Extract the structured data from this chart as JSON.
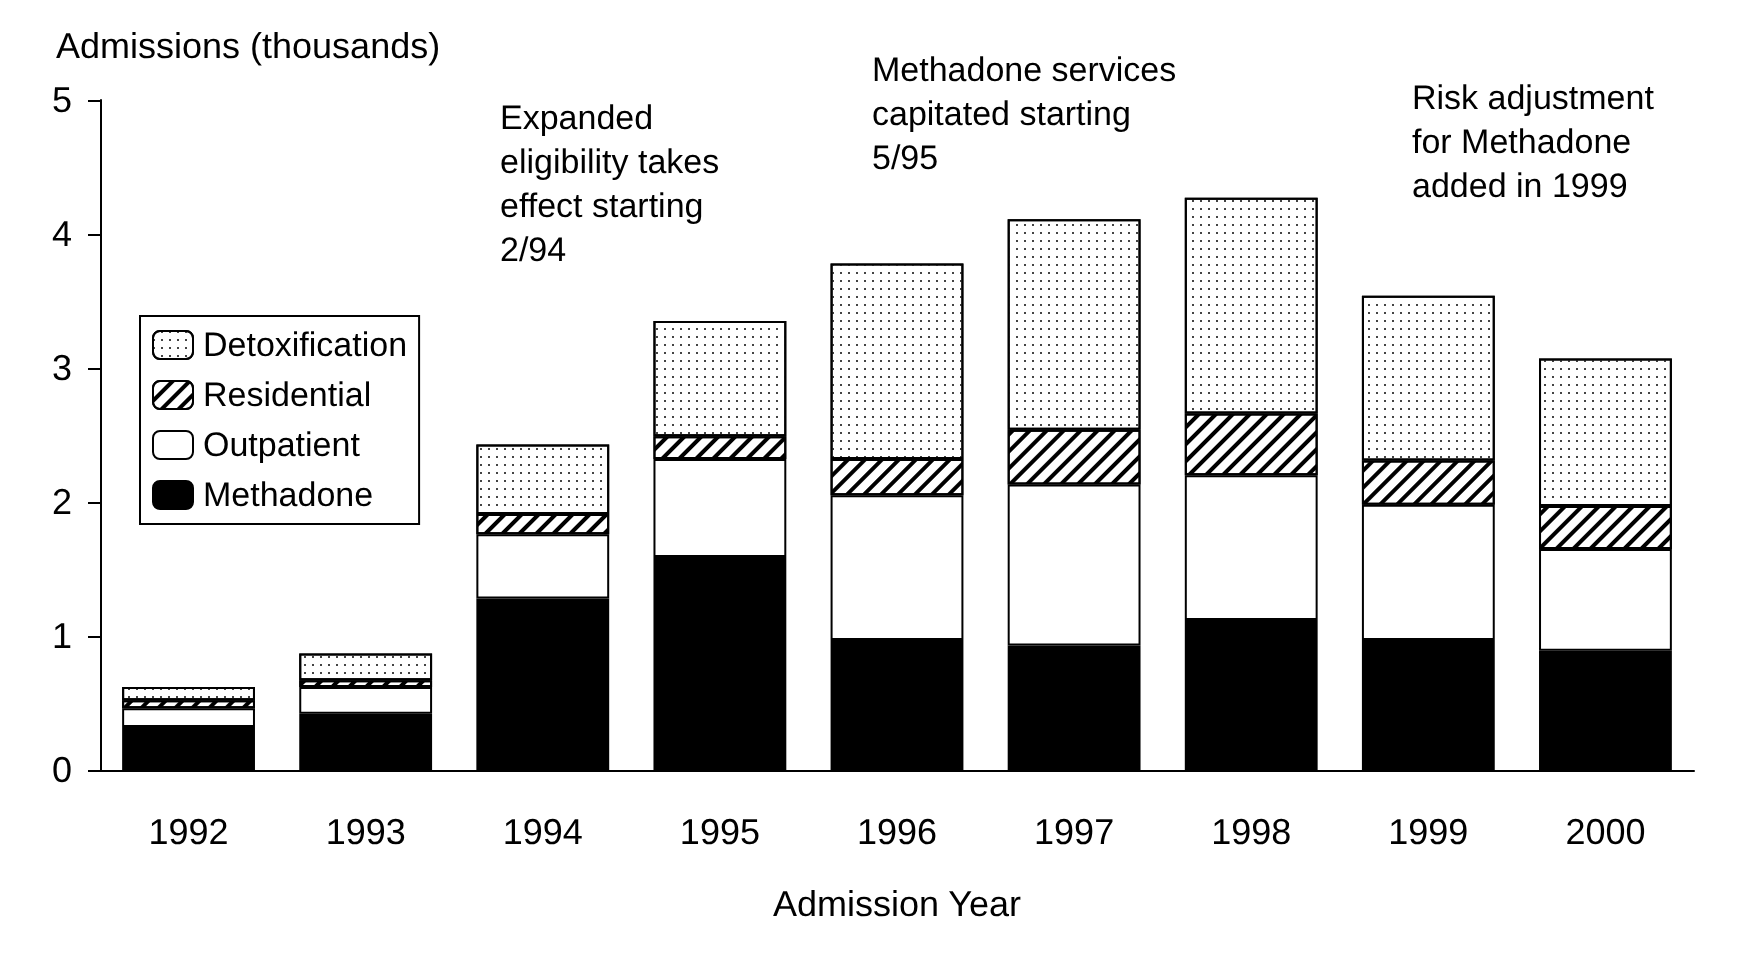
{
  "chart_data": {
    "type": "bar",
    "stacked": true,
    "ylabel": "Admissions (thousands)",
    "xlabel": "Admission Year",
    "categories": [
      "1992",
      "1993",
      "1994",
      "1995",
      "1996",
      "1997",
      "1998",
      "1999",
      "2000"
    ],
    "series": [
      {
        "name": "Methadone",
        "color": "#000000",
        "values": [
          0.32,
          0.42,
          1.28,
          1.59,
          0.97,
          0.93,
          1.12,
          0.97,
          0.89
        ]
      },
      {
        "name": "Outpatient",
        "color": "#ffffff",
        "values": [
          0.14,
          0.2,
          0.48,
          0.73,
          1.08,
          1.2,
          1.08,
          1.01,
          0.76
        ]
      },
      {
        "name": "Residential",
        "color": "#ffffff",
        "values": [
          0.06,
          0.05,
          0.15,
          0.17,
          0.27,
          0.41,
          0.46,
          0.33,
          0.32
        ]
      },
      {
        "name": "Detoxification",
        "color": "#ffffff",
        "values": [
          0.1,
          0.2,
          0.52,
          0.86,
          1.46,
          1.57,
          1.61,
          1.23,
          1.1
        ]
      }
    ],
    "ylim": [
      0,
      5
    ],
    "yticks": [
      0,
      1,
      2,
      3,
      4,
      5
    ],
    "grid": false,
    "legend": "left",
    "annotations": [
      "Expanded\neligibility takes\neffect starting\n2/94",
      "Methadone services\ncapitated starting\n5/95",
      "Risk adjustment\nfor Methadone\nadded in 1999"
    ]
  }
}
